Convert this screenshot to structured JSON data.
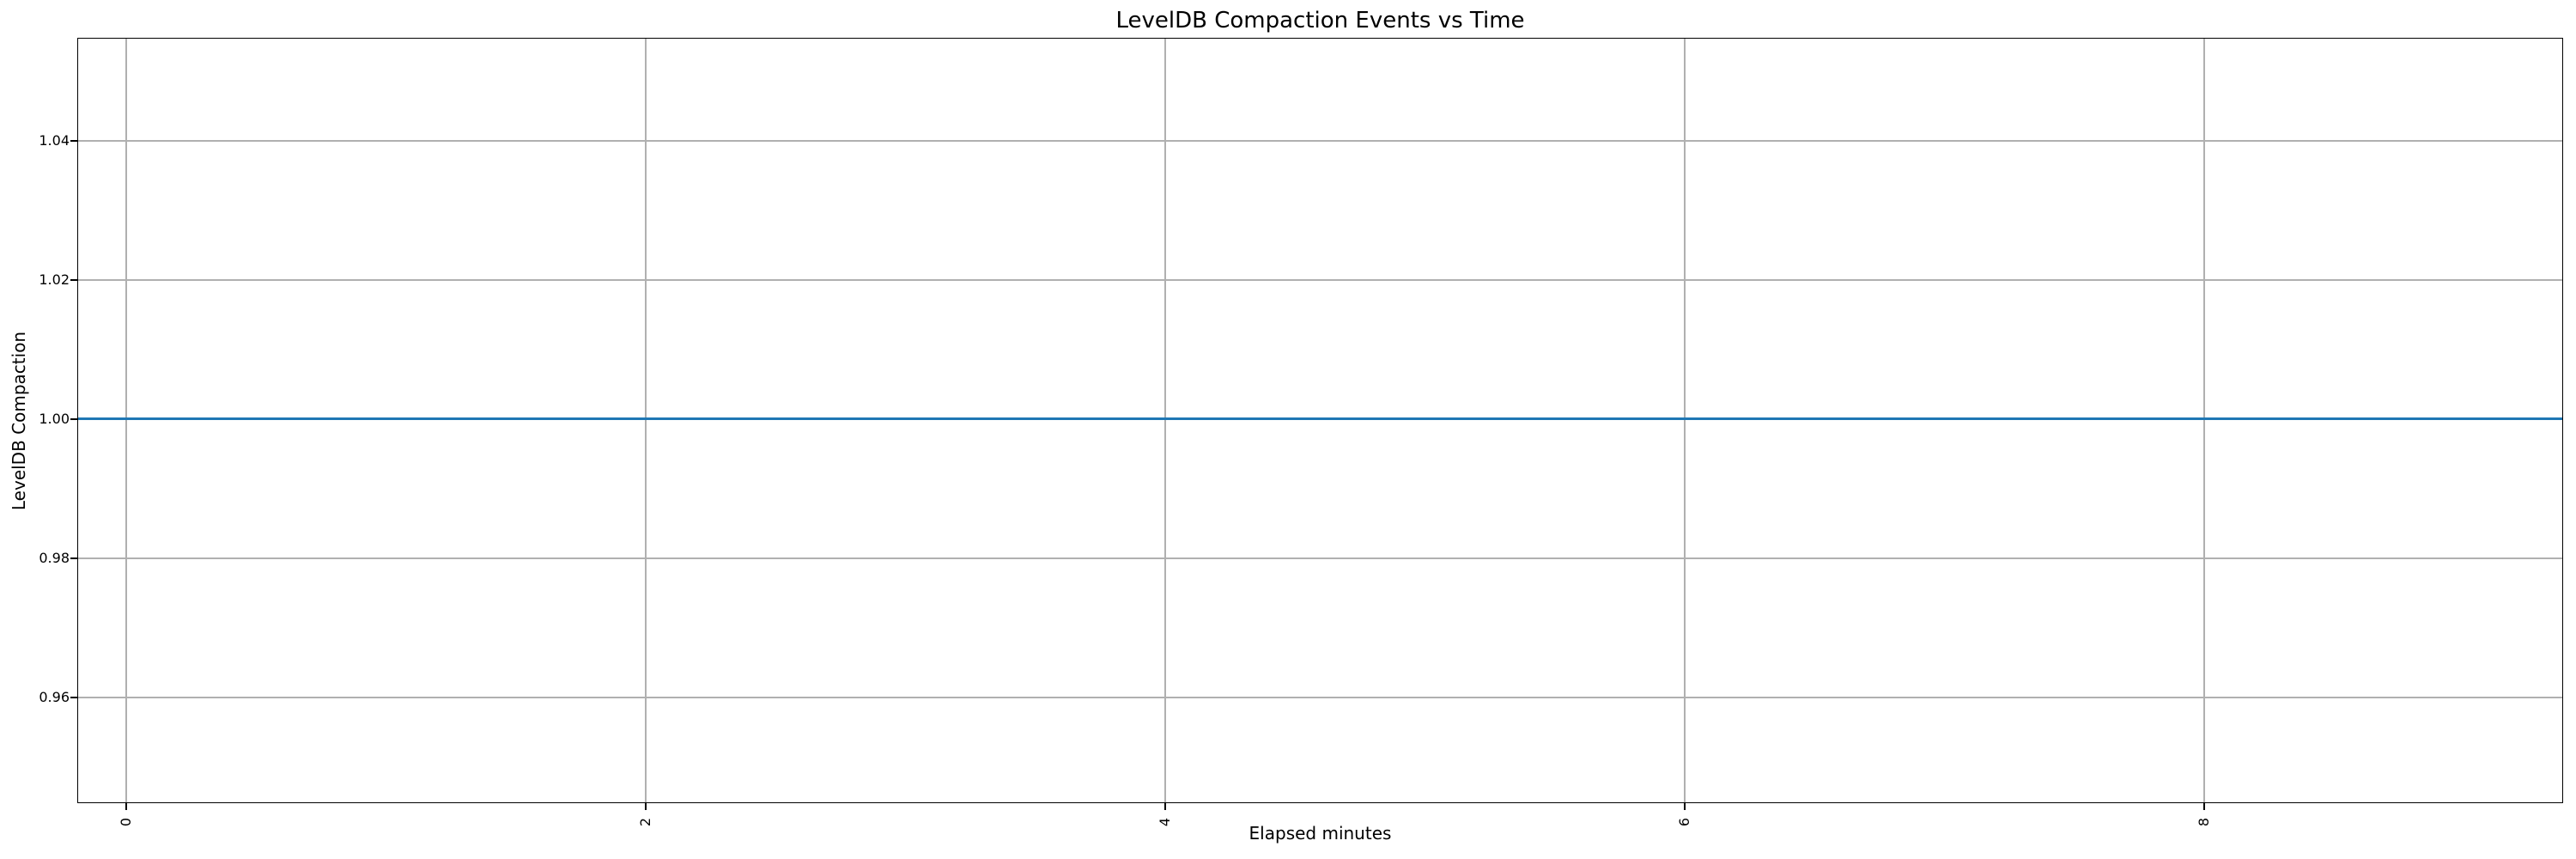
{
  "chart_data": {
    "type": "line",
    "title": "LevelDB Compaction Events vs Time",
    "xlabel": "Elapsed minutes",
    "ylabel": "LevelDB Compaction",
    "x_ticks": [
      0,
      2,
      4,
      6,
      8
    ],
    "x_tick_labels": [
      "0",
      "2",
      "4",
      "6",
      "8"
    ],
    "x_tick_rotation_deg": 90,
    "y_ticks": [
      0.96,
      0.98,
      1.0,
      1.02,
      1.04
    ],
    "y_tick_labels": [
      "0.96",
      "0.98",
      "1.00",
      "1.02",
      "1.04"
    ],
    "xlim": [
      -0.1884,
      9.3818
    ],
    "ylim": [
      0.9448,
      1.0548
    ],
    "grid": true,
    "legend": "none",
    "series": [
      {
        "name": "LevelDB Compaction",
        "kind": "constant-horizontal-line",
        "y": 1.0,
        "span": "full-axes-width",
        "color": "#1f77b4"
      }
    ],
    "colors": {
      "background": "#ffffff",
      "grid": "#b0b0b0",
      "spine": "#000000",
      "text": "#000000"
    }
  }
}
